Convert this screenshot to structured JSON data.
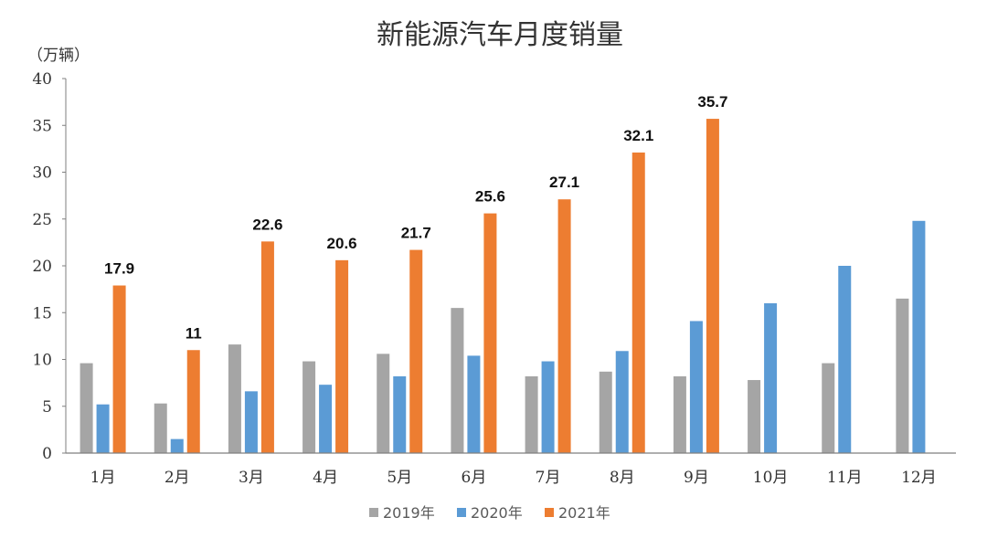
{
  "chart_data": {
    "type": "bar",
    "title": "新能源汽车月度销量",
    "unit_label": "（万辆）",
    "xlabel": "",
    "ylabel": "",
    "ylim": [
      0,
      40
    ],
    "yticks": [
      0,
      5,
      10,
      15,
      20,
      25,
      30,
      35,
      40
    ],
    "grid": false,
    "legend_position": "bottom-center",
    "categories": [
      "1月",
      "2月",
      "3月",
      "4月",
      "5月",
      "6月",
      "7月",
      "8月",
      "9月",
      "10月",
      "11月",
      "12月"
    ],
    "series": [
      {
        "name": "2019年",
        "color": "#a5a5a5",
        "values": [
          9.6,
          5.3,
          11.6,
          9.8,
          10.6,
          15.5,
          8.2,
          8.7,
          8.2,
          7.8,
          9.6,
          16.5
        ],
        "labels": [
          "",
          "",
          "",
          "",
          "",
          "",
          "",
          "",
          "",
          "",
          "",
          ""
        ]
      },
      {
        "name": "2020年",
        "color": "#5b9bd5",
        "values": [
          5.2,
          1.5,
          6.6,
          7.3,
          8.2,
          10.4,
          9.8,
          10.9,
          14.1,
          16.0,
          20.0,
          24.8
        ],
        "labels": [
          "",
          "",
          "",
          "",
          "",
          "",
          "",
          "",
          "",
          "",
          "",
          ""
        ]
      },
      {
        "name": "2021年",
        "color": "#ed7d31",
        "values": [
          17.9,
          11,
          22.6,
          20.6,
          21.7,
          25.6,
          27.1,
          32.1,
          35.7,
          null,
          null,
          null
        ],
        "labels": [
          "17.9",
          "11",
          "22.6",
          "20.6",
          "21.7",
          "25.6",
          "27.1",
          "32.1",
          "35.7",
          "",
          "",
          ""
        ]
      }
    ]
  }
}
